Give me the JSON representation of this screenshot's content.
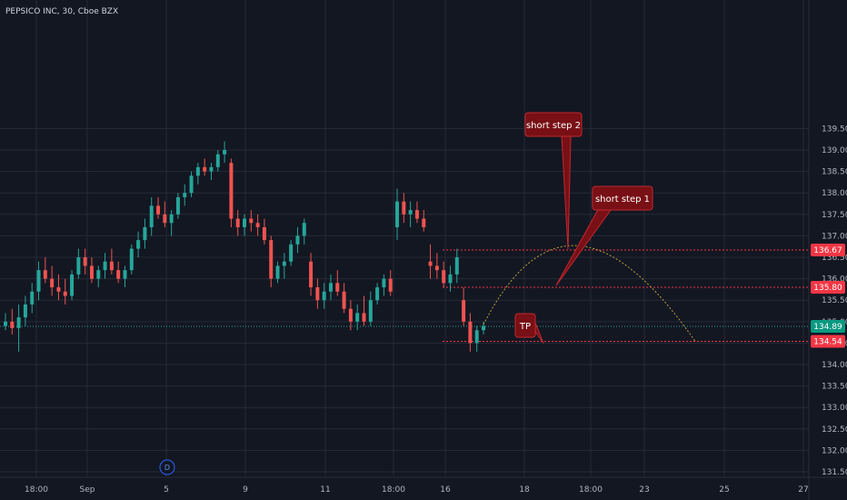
{
  "chart_data": {
    "type": "candlestick",
    "title": "PEPSICO INC, 30, Cboe BZX",
    "y_axis": {
      "range": [
        131.2,
        139.8
      ],
      "ticks": [
        "131.50",
        "132.00",
        "132.50",
        "133.00",
        "133.50",
        "134.00",
        "134.50",
        "135.00",
        "135.50",
        "136.00",
        "136.50",
        "137.00",
        "137.50",
        "138.00",
        "138.50",
        "139.00",
        "139.50"
      ]
    },
    "x_axis": {
      "ticks": [
        "18:00",
        "Sep",
        "5",
        "9",
        "11",
        "18:00",
        "16",
        "18",
        "18:00",
        "23",
        "25",
        "27"
      ]
    },
    "marker_badge": "D",
    "price_tags": [
      {
        "label": "136.67",
        "value": 136.67,
        "color": "#f23645"
      },
      {
        "label": "135.80",
        "value": 135.8,
        "color": "#f23645"
      },
      {
        "label": "134.89",
        "value": 134.89,
        "color": "#089981"
      },
      {
        "label": "134.54",
        "value": 134.54,
        "color": "#f23645"
      }
    ],
    "levels": [
      {
        "value": 136.67,
        "color": "#f23645",
        "style": "dashed"
      },
      {
        "value": 135.8,
        "color": "#f23645",
        "style": "dashed"
      },
      {
        "value": 134.89,
        "color": "#26a69a",
        "style": "dotted"
      },
      {
        "value": 134.54,
        "color": "#f23645",
        "style": "dashed"
      }
    ],
    "annotations": [
      {
        "text": "short step 2"
      },
      {
        "text": "short step 1"
      },
      {
        "text": "TP"
      }
    ],
    "candles": [
      [
        134.9,
        135.2,
        134.8,
        135.0
      ],
      [
        135.0,
        135.3,
        134.7,
        134.85
      ],
      [
        134.85,
        135.4,
        134.3,
        135.1
      ],
      [
        135.1,
        135.6,
        134.9,
        135.4
      ],
      [
        135.4,
        135.9,
        135.2,
        135.7
      ],
      [
        135.7,
        136.4,
        135.5,
        136.2
      ],
      [
        136.2,
        136.5,
        135.9,
        136.0
      ],
      [
        136.0,
        136.3,
        135.6,
        135.8
      ],
      [
        135.8,
        136.1,
        135.5,
        135.7
      ],
      [
        135.7,
        136.0,
        135.4,
        135.6
      ],
      [
        135.6,
        136.2,
        135.5,
        136.1
      ],
      [
        136.1,
        136.7,
        136.0,
        136.5
      ],
      [
        136.5,
        136.7,
        136.1,
        136.3
      ],
      [
        136.3,
        136.5,
        135.9,
        136.0
      ],
      [
        136.0,
        136.3,
        135.8,
        136.2
      ],
      [
        136.2,
        136.6,
        136.0,
        136.4
      ],
      [
        136.4,
        136.7,
        136.1,
        136.2
      ],
      [
        136.2,
        136.4,
        135.9,
        136.0
      ],
      [
        136.0,
        136.3,
        135.8,
        136.2
      ],
      [
        136.2,
        136.8,
        136.1,
        136.7
      ],
      [
        136.7,
        137.1,
        136.5,
        136.9
      ],
      [
        136.9,
        137.4,
        136.7,
        137.2
      ],
      [
        137.2,
        137.9,
        137.0,
        137.7
      ],
      [
        137.7,
        137.9,
        137.4,
        137.5
      ],
      [
        137.5,
        137.8,
        137.2,
        137.3
      ],
      [
        137.3,
        137.6,
        137.0,
        137.5
      ],
      [
        137.5,
        138.0,
        137.4,
        137.9
      ],
      [
        137.9,
        138.2,
        137.7,
        138.0
      ],
      [
        138.0,
        138.5,
        137.9,
        138.4
      ],
      [
        138.4,
        138.7,
        138.2,
        138.6
      ],
      [
        138.6,
        138.8,
        138.4,
        138.5
      ],
      [
        138.5,
        138.7,
        138.3,
        138.6
      ],
      [
        138.6,
        139.0,
        138.5,
        138.9
      ],
      [
        138.9,
        139.2,
        138.7,
        139.0
      ],
      [
        138.7,
        138.8,
        137.2,
        137.4
      ],
      [
        137.4,
        137.6,
        137.0,
        137.2
      ],
      [
        137.2,
        137.5,
        137.0,
        137.4
      ],
      [
        137.4,
        137.6,
        137.1,
        137.3
      ],
      [
        137.3,
        137.5,
        137.0,
        137.2
      ],
      [
        137.2,
        137.4,
        136.8,
        136.9
      ],
      [
        136.9,
        137.0,
        135.8,
        136.0
      ],
      [
        136.0,
        136.4,
        135.9,
        136.3
      ],
      [
        136.3,
        136.6,
        136.0,
        136.4
      ],
      [
        136.4,
        136.9,
        136.3,
        136.8
      ],
      [
        136.8,
        137.2,
        136.6,
        137.0
      ],
      [
        137.0,
        137.4,
        136.8,
        137.3
      ],
      [
        136.4,
        136.6,
        135.6,
        135.8
      ],
      [
        135.8,
        136.0,
        135.3,
        135.5
      ],
      [
        135.5,
        135.9,
        135.3,
        135.7
      ],
      [
        135.7,
        136.1,
        135.5,
        135.9
      ],
      [
        135.9,
        136.2,
        135.6,
        135.7
      ],
      [
        135.7,
        135.9,
        135.2,
        135.3
      ],
      [
        135.3,
        135.5,
        134.8,
        135.0
      ],
      [
        135.0,
        135.4,
        134.8,
        135.2
      ],
      [
        135.2,
        135.6,
        134.9,
        135.0
      ],
      [
        135.0,
        135.7,
        134.9,
        135.5
      ],
      [
        135.5,
        135.9,
        135.4,
        135.8
      ],
      [
        135.8,
        136.1,
        135.6,
        136.0
      ],
      [
        136.0,
        136.2,
        135.6,
        135.7
      ],
      [
        137.2,
        138.1,
        136.9,
        137.8
      ],
      [
        137.8,
        138.0,
        137.3,
        137.5
      ],
      [
        137.5,
        137.8,
        137.2,
        137.6
      ],
      [
        137.6,
        137.8,
        137.3,
        137.4
      ],
      [
        137.4,
        137.6,
        137.1,
        137.2
      ],
      [
        136.4,
        136.8,
        136.0,
        136.3
      ],
      [
        136.3,
        136.6,
        136.0,
        136.2
      ],
      [
        136.2,
        136.4,
        135.8,
        135.9
      ],
      [
        135.9,
        136.3,
        135.7,
        136.1
      ],
      [
        136.1,
        136.7,
        135.9,
        136.5
      ],
      [
        135.5,
        135.8,
        134.9,
        135.0
      ],
      [
        135.0,
        135.2,
        134.3,
        134.5
      ],
      [
        134.5,
        134.9,
        134.3,
        134.8
      ],
      [
        134.8,
        135.0,
        134.7,
        134.9
      ]
    ]
  }
}
